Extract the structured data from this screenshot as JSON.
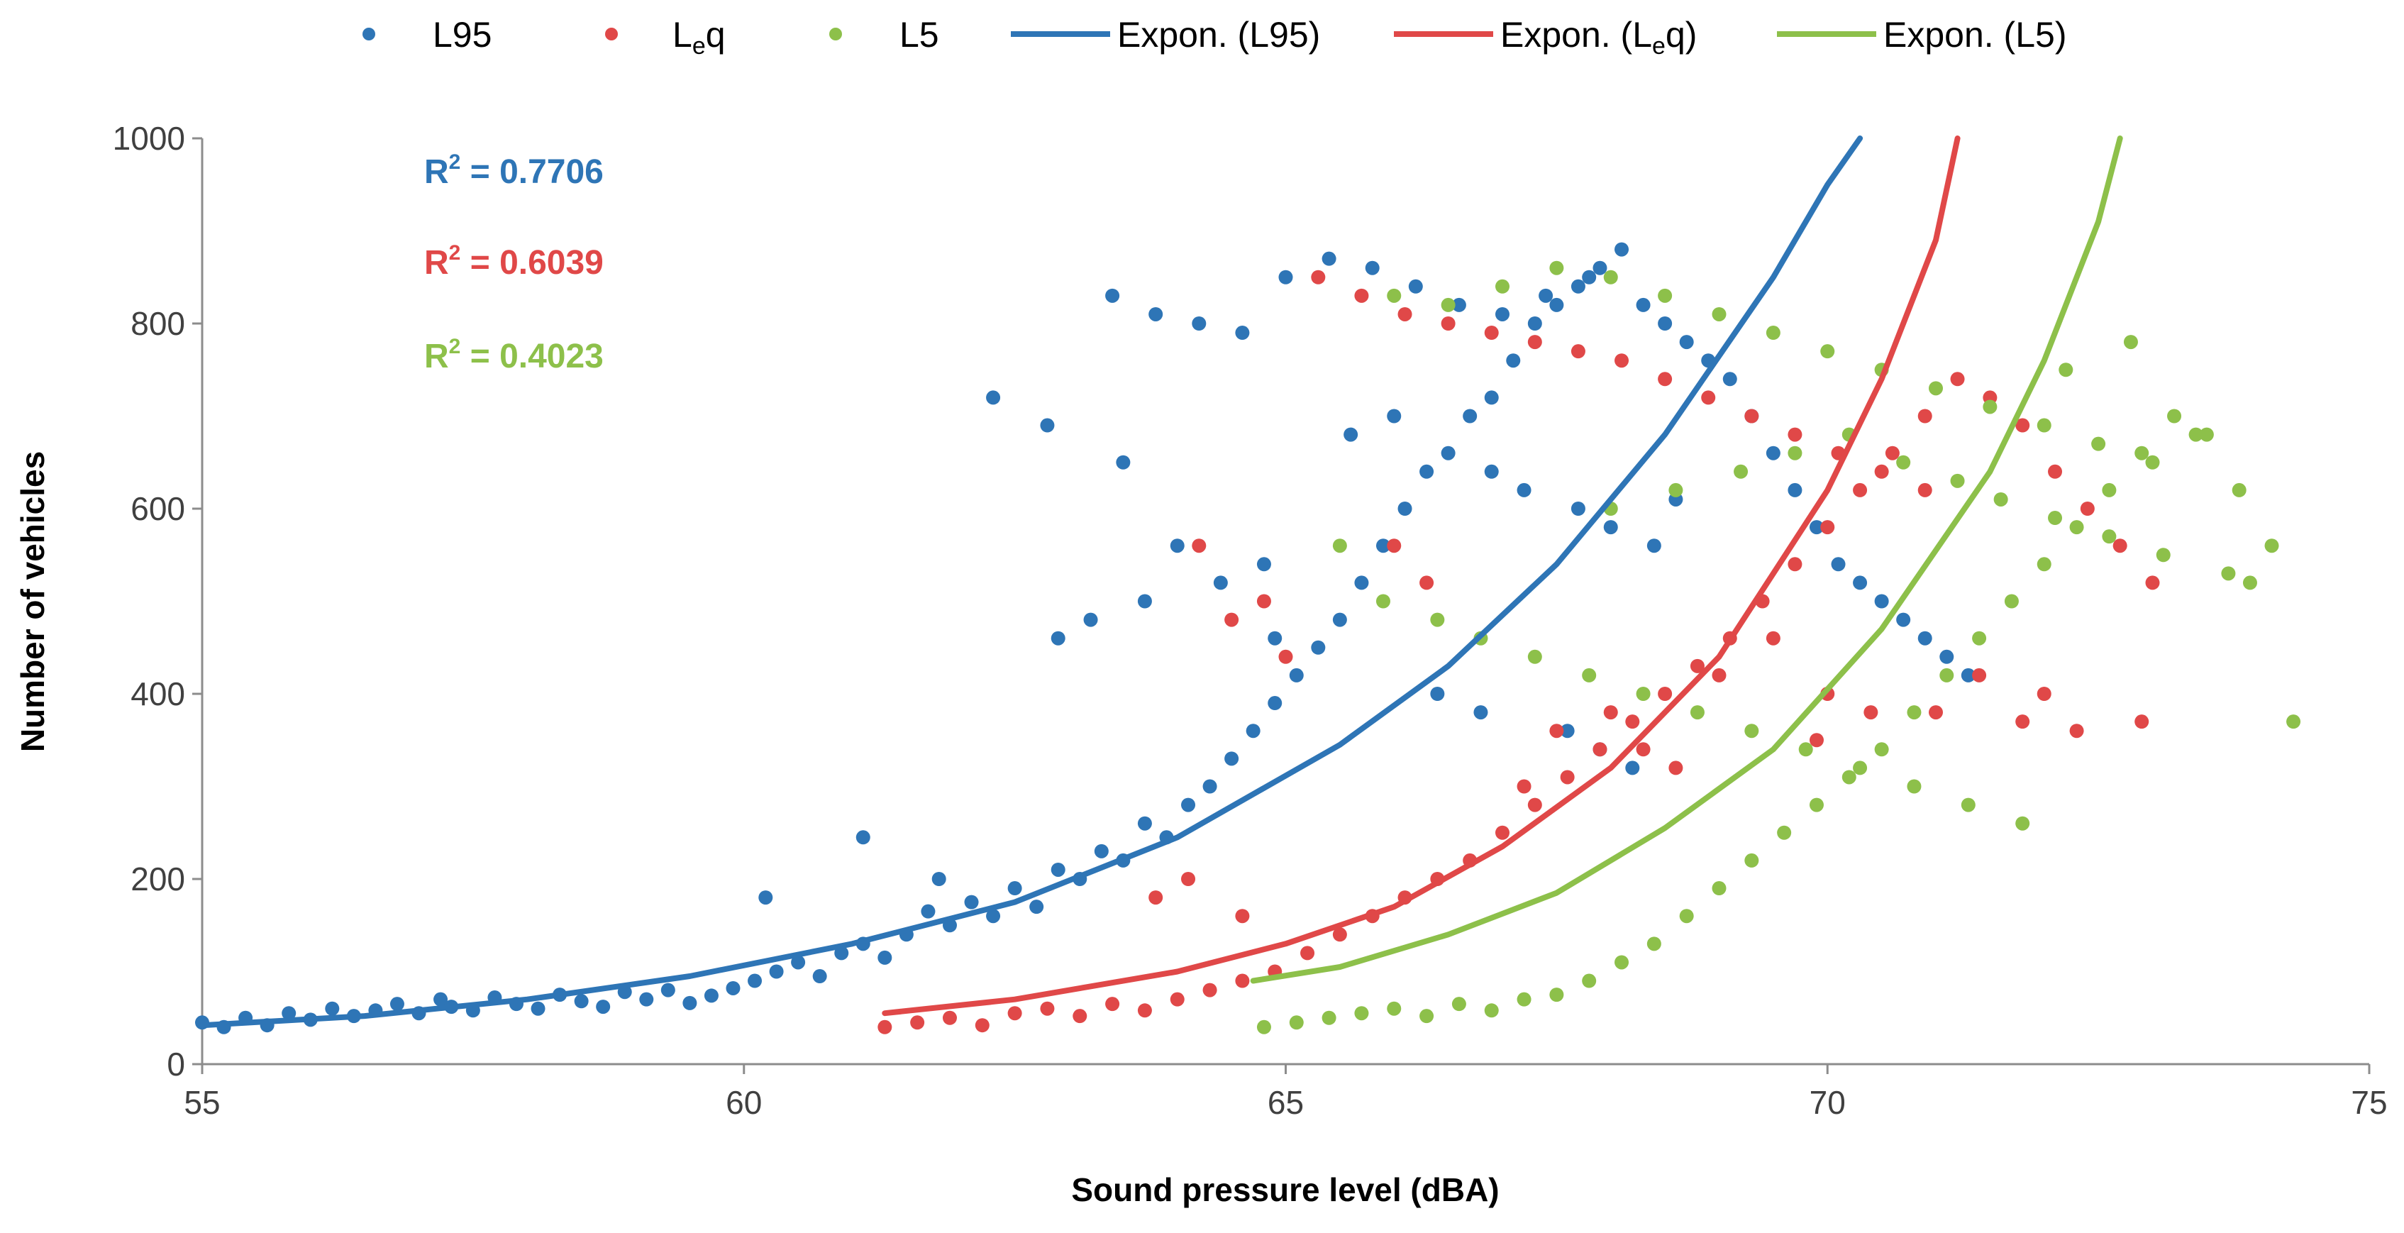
{
  "chart_data": {
    "type": "scatter",
    "xlabel": "Sound pressure level (dBA)",
    "ylabel": "Number  of vehicles",
    "xlim": [
      55,
      75
    ],
    "ylim": [
      0,
      1000
    ],
    "xticks": [
      55,
      60,
      65,
      70,
      75
    ],
    "yticks": [
      0,
      200,
      400,
      600,
      800,
      1000
    ],
    "grid": false,
    "legend_position": "top",
    "legend": [
      {
        "label": "L95",
        "kind": "marker",
        "color": "#2E75B6"
      },
      {
        "label_main": "L",
        "label_sub": "e",
        "label_tail": "q",
        "kind": "marker",
        "color": "#E04848"
      },
      {
        "label": "L5",
        "kind": "marker",
        "color": "#8DC04A"
      },
      {
        "label": "Expon. (L95)",
        "kind": "line",
        "color": "#2E75B6"
      },
      {
        "label_pre": "Expon. (L",
        "label_sub": "e",
        "label_post": "q)",
        "kind": "line",
        "color": "#E04848"
      },
      {
        "label": "Expon. (L5)",
        "kind": "line",
        "color": "#8DC04A"
      }
    ],
    "r2_annotations": [
      {
        "prefix": "R",
        "sup": "2",
        "text": " = 0.7706",
        "color": "#2E75B6"
      },
      {
        "prefix": "R",
        "sup": "2",
        "text": " = 0.6039",
        "color": "#E04848"
      },
      {
        "prefix": "R",
        "sup": "2",
        "text": " = 0.4023",
        "color": "#8DC04A"
      }
    ],
    "trendlines": [
      {
        "name": "Expon. (L95)",
        "color": "#2E75B6",
        "x": [
          55.0,
          56.5,
          58.0,
          59.5,
          61.0,
          62.5,
          64.0,
          65.5,
          66.5,
          67.5,
          68.5,
          69.5,
          70.0,
          70.3
        ],
        "y": [
          42,
          52,
          70,
          95,
          130,
          175,
          245,
          345,
          430,
          540,
          680,
          850,
          950,
          1000
        ]
      },
      {
        "name": "Expon. (Leq)",
        "color": "#E04848",
        "x": [
          61.3,
          62.5,
          64.0,
          65.0,
          66.0,
          67.0,
          68.0,
          69.0,
          70.0,
          70.5,
          71.0,
          71.2
        ],
        "y": [
          55,
          70,
          100,
          130,
          170,
          235,
          320,
          440,
          620,
          740,
          890,
          1000
        ]
      },
      {
        "name": "Expon. (L5)",
        "color": "#8DC04A",
        "x": [
          64.7,
          65.5,
          66.5,
          67.5,
          68.5,
          69.5,
          70.5,
          71.5,
          72.0,
          72.5,
          72.7
        ],
        "y": [
          90,
          105,
          140,
          185,
          255,
          340,
          470,
          640,
          760,
          910,
          1000
        ]
      }
    ],
    "series": [
      {
        "name": "L95",
        "color": "#2E75B6",
        "x": [
          55.0,
          55.2,
          55.4,
          55.6,
          55.8,
          56.0,
          56.2,
          56.4,
          56.6,
          56.8,
          57.0,
          57.2,
          57.3,
          57.5,
          57.7,
          57.9,
          58.1,
          58.3,
          58.5,
          58.7,
          58.9,
          59.1,
          59.3,
          59.5,
          59.7,
          59.9,
          60.1,
          60.3,
          60.5,
          60.7,
          60.9,
          61.1,
          61.3,
          61.5,
          61.7,
          61.9,
          62.1,
          62.3,
          62.5,
          62.7,
          62.9,
          63.1,
          63.3,
          63.5,
          63.7,
          63.9,
          64.1,
          64.3,
          64.5,
          64.7,
          64.9,
          65.1,
          65.3,
          65.5,
          65.7,
          65.9,
          66.1,
          66.3,
          66.5,
          66.7,
          66.9,
          67.1,
          67.3,
          67.5,
          67.7,
          67.9,
          68.1,
          68.3,
          68.5,
          68.7,
          68.9,
          69.1,
          69.3,
          69.5,
          69.7,
          69.9,
          70.1,
          70.3,
          70.5,
          70.7,
          70.9,
          71.1,
          71.3,
          63.4,
          63.8,
          64.2,
          64.6,
          65.0,
          65.4,
          65.8,
          66.2,
          66.6,
          67.0,
          67.4,
          67.8,
          62.3,
          62.8,
          63.5,
          64.0,
          64.9,
          60.2,
          61.1,
          61.8,
          66.4,
          66.8,
          67.6,
          67.9,
          68.2,
          62.9,
          63.2,
          63.7,
          64.4,
          64.8,
          65.6,
          66.0,
          66.9,
          67.2,
          67.7,
          68.0,
          68.4,
          68.6
        ],
        "y": [
          45,
          40,
          50,
          42,
          55,
          48,
          60,
          52,
          58,
          65,
          55,
          70,
          62,
          58,
          72,
          65,
          60,
          75,
          68,
          62,
          78,
          70,
          80,
          66,
          74,
          82,
          90,
          100,
          110,
          95,
          120,
          130,
          115,
          140,
          165,
          150,
          175,
          160,
          190,
          170,
          210,
          200,
          230,
          220,
          260,
          245,
          280,
          300,
          330,
          360,
          390,
          420,
          450,
          480,
          520,
          560,
          600,
          640,
          660,
          700,
          720,
          760,
          800,
          820,
          840,
          860,
          880,
          820,
          800,
          780,
          760,
          740,
          700,
          660,
          620,
          580,
          540,
          520,
          500,
          480,
          460,
          440,
          420,
          830,
          810,
          800,
          790,
          850,
          870,
          860,
          840,
          820,
          810,
          830,
          850,
          720,
          690,
          650,
          560,
          460,
          180,
          245,
          200,
          400,
          380,
          360,
          340,
          320,
          460,
          480,
          500,
          520,
          540,
          680,
          700,
          640,
          620,
          600,
          580,
          560,
          610
        ]
      },
      {
        "name": "Leq",
        "color": "#E04848",
        "x": [
          61.3,
          61.6,
          61.9,
          62.2,
          62.5,
          62.8,
          63.1,
          63.4,
          63.7,
          64.0,
          64.3,
          64.6,
          64.9,
          65.2,
          65.5,
          65.8,
          66.1,
          66.4,
          66.7,
          67.0,
          67.3,
          67.6,
          67.9,
          68.2,
          68.5,
          68.8,
          69.1,
          69.4,
          69.7,
          70.0,
          70.3,
          70.6,
          70.9,
          71.2,
          71.5,
          71.8,
          72.1,
          72.4,
          72.7,
          73.0,
          65.3,
          65.7,
          66.1,
          66.5,
          66.9,
          67.3,
          67.7,
          68.1,
          68.5,
          68.9,
          69.3,
          69.7,
          70.1,
          70.5,
          70.9,
          64.2,
          64.5,
          64.8,
          65.0,
          66.0,
          66.3,
          67.5,
          68.0,
          68.3,
          69.0,
          69.5,
          70.0,
          71.0,
          71.8,
          72.3,
          63.8,
          64.1,
          64.6,
          67.2,
          68.6,
          69.9,
          70.4,
          71.4,
          72.0,
          72.9
        ],
        "y": [
          40,
          45,
          50,
          42,
          55,
          60,
          52,
          65,
          58,
          70,
          80,
          90,
          100,
          120,
          140,
          160,
          180,
          200,
          220,
          250,
          280,
          310,
          340,
          370,
          400,
          430,
          460,
          500,
          540,
          580,
          620,
          660,
          700,
          740,
          720,
          690,
          640,
          600,
          560,
          520,
          850,
          830,
          810,
          800,
          790,
          780,
          770,
          760,
          740,
          720,
          700,
          680,
          660,
          640,
          620,
          560,
          480,
          500,
          440,
          560,
          520,
          360,
          380,
          340,
          420,
          460,
          400,
          380,
          370,
          360,
          180,
          200,
          160,
          300,
          320,
          350,
          380,
          420,
          400,
          370
        ]
      },
      {
        "name": "L5",
        "color": "#8DC04A",
        "x": [
          64.8,
          65.1,
          65.4,
          65.7,
          66.0,
          66.3,
          66.6,
          66.9,
          67.2,
          67.5,
          67.8,
          68.1,
          68.4,
          68.7,
          69.0,
          69.3,
          69.6,
          69.9,
          70.2,
          70.5,
          70.8,
          71.1,
          71.4,
          71.7,
          72.0,
          72.3,
          72.6,
          72.9,
          73.2,
          73.5,
          73.8,
          74.1,
          74.3,
          66.0,
          66.5,
          67.0,
          67.5,
          68.0,
          68.5,
          69.0,
          69.5,
          70.0,
          70.5,
          71.0,
          71.5,
          72.0,
          72.5,
          73.0,
          65.5,
          65.9,
          66.4,
          66.8,
          67.3,
          67.8,
          68.3,
          68.8,
          69.3,
          69.8,
          70.3,
          70.8,
          71.3,
          71.8,
          72.2,
          72.8,
          73.4,
          73.9,
          68.0,
          68.6,
          69.2,
          69.7,
          70.2,
          70.7,
          71.2,
          71.6,
          72.1,
          72.6,
          73.1,
          73.7
        ],
        "y": [
          40,
          45,
          50,
          55,
          60,
          52,
          65,
          58,
          70,
          75,
          90,
          110,
          130,
          160,
          190,
          220,
          250,
          280,
          310,
          340,
          380,
          420,
          460,
          500,
          540,
          580,
          620,
          660,
          700,
          680,
          620,
          560,
          370,
          830,
          820,
          840,
          860,
          850,
          830,
          810,
          790,
          770,
          750,
          730,
          710,
          690,
          670,
          650,
          560,
          500,
          480,
          460,
          440,
          420,
          400,
          380,
          360,
          340,
          320,
          300,
          280,
          260,
          750,
          780,
          680,
          520,
          600,
          620,
          640,
          660,
          680,
          650,
          630,
          610,
          590,
          570,
          550,
          530
        ]
      }
    ]
  }
}
